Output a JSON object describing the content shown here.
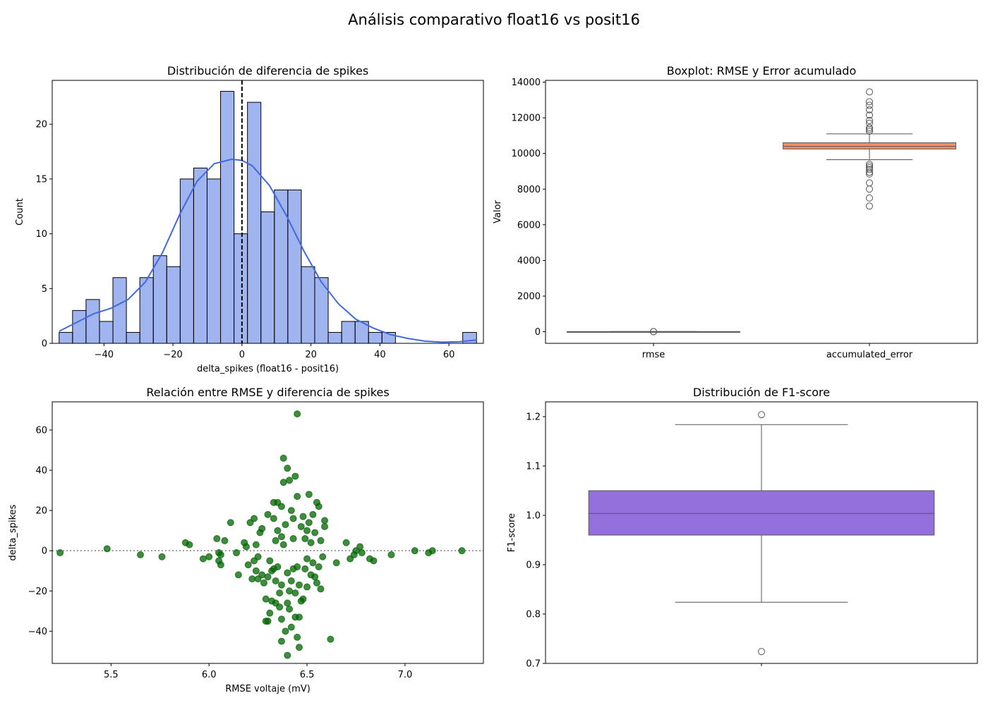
{
  "figure": {
    "title": "Análisis comparativo float16 vs posit16"
  },
  "chart_data": [
    {
      "type": "histogram",
      "title": "Distribución de diferencia de spikes",
      "xlabel": "delta_spikes (float16 - posit16)",
      "ylabel": "Count",
      "xlim": [
        -55,
        70
      ],
      "ylim": [
        0,
        24
      ],
      "xticks": [
        -40,
        -20,
        0,
        20,
        40,
        60
      ],
      "yticks": [
        0,
        5,
        10,
        15,
        20
      ],
      "grid": false,
      "color": "#4169e1",
      "bins": [
        {
          "x0": -53,
          "x1": -49.1,
          "count": 1
        },
        {
          "x0": -49.1,
          "x1": -45.2,
          "count": 3
        },
        {
          "x0": -45.2,
          "x1": -41.3,
          "count": 4
        },
        {
          "x0": -41.3,
          "x1": -37.4,
          "count": 2
        },
        {
          "x0": -37.4,
          "x1": -33.5,
          "count": 6
        },
        {
          "x0": -33.5,
          "x1": -29.6,
          "count": 1
        },
        {
          "x0": -29.6,
          "x1": -25.7,
          "count": 6
        },
        {
          "x0": -25.7,
          "x1": -21.8,
          "count": 8
        },
        {
          "x0": -21.8,
          "x1": -17.9,
          "count": 7
        },
        {
          "x0": -17.9,
          "x1": -14.0,
          "count": 15
        },
        {
          "x0": -14.0,
          "x1": -10.1,
          "count": 16
        },
        {
          "x0": -10.1,
          "x1": -6.2,
          "count": 15
        },
        {
          "x0": -6.2,
          "x1": -2.3,
          "count": 23
        },
        {
          "x0": -2.3,
          "x1": 1.6,
          "count": 10
        },
        {
          "x0": 1.6,
          "x1": 5.5,
          "count": 22
        },
        {
          "x0": 5.5,
          "x1": 9.4,
          "count": 12
        },
        {
          "x0": 9.4,
          "x1": 13.3,
          "count": 14
        },
        {
          "x0": 13.3,
          "x1": 17.2,
          "count": 14
        },
        {
          "x0": 17.2,
          "x1": 21.1,
          "count": 7
        },
        {
          "x0": 21.1,
          "x1": 25.0,
          "count": 6
        },
        {
          "x0": 25.0,
          "x1": 28.9,
          "count": 1
        },
        {
          "x0": 28.9,
          "x1": 32.8,
          "count": 2
        },
        {
          "x0": 32.8,
          "x1": 36.7,
          "count": 2
        },
        {
          "x0": 36.7,
          "x1": 40.6,
          "count": 1
        },
        {
          "x0": 40.6,
          "x1": 44.5,
          "count": 1
        },
        {
          "x0": 64.0,
          "x1": 68.0,
          "count": 1
        }
      ],
      "kde": {
        "x": [
          -53,
          -48,
          -43,
          -38,
          -33,
          -28,
          -23,
          -18,
          -13,
          -8,
          -3,
          0,
          3,
          8,
          13,
          18,
          23,
          28,
          33,
          38,
          43,
          48,
          53,
          58,
          63,
          68
        ],
        "y": [
          1.1,
          1.9,
          2.7,
          3.2,
          4.0,
          5.6,
          8.3,
          11.8,
          14.8,
          16.4,
          16.8,
          16.7,
          16.2,
          14.4,
          11.6,
          8.4,
          5.6,
          3.6,
          2.2,
          1.4,
          0.8,
          0.45,
          0.2,
          0.1,
          0.15,
          0.3
        ]
      },
      "vline": 0
    },
    {
      "type": "boxplot",
      "title": "Boxplot: RMSE y Error acumulado",
      "xlabel": "",
      "ylabel": "Valor",
      "ylim": [
        -650,
        14100
      ],
      "yticks": [
        0,
        2000,
        4000,
        6000,
        8000,
        10000,
        12000,
        14000
      ],
      "categories": [
        "rmse",
        "accumulated_error"
      ],
      "boxes": [
        {
          "name": "rmse",
          "color": "#66c2a5",
          "q1": 6.2,
          "median": 6.4,
          "q3": 6.6,
          "whisker_low": 5.2,
          "whisker_high": 7.3,
          "outliers": [
            5.22,
            7.29
          ]
        },
        {
          "name": "accumulated_error",
          "color": "#fc8d62",
          "q1": 10250,
          "median": 10400,
          "q3": 10600,
          "whisker_low": 9650,
          "whisker_high": 11100,
          "outliers": [
            13450,
            12900,
            12700,
            12450,
            12150,
            11850,
            11700,
            11450,
            11350,
            11250,
            9400,
            9300,
            9200,
            9100,
            8950,
            8850,
            8350,
            8000,
            7500,
            7050
          ]
        }
      ]
    },
    {
      "type": "scatter",
      "title": "Relación entre RMSE y diferencia de spikes",
      "xlabel": "RMSE voltaje (mV)",
      "ylabel": "delta_spikes",
      "xlim": [
        5.2,
        7.4
      ],
      "ylim": [
        -56,
        74
      ],
      "xticks": [
        5.5,
        6.0,
        6.5,
        7.0
      ],
      "yticks": [
        -40,
        -20,
        0,
        20,
        40,
        60
      ],
      "color": "#006400",
      "hline": 0,
      "points": [
        [
          5.24,
          -1
        ],
        [
          5.48,
          1
        ],
        [
          5.65,
          -2
        ],
        [
          5.76,
          -3
        ],
        [
          5.88,
          4
        ],
        [
          5.9,
          3
        ],
        [
          5.97,
          -4
        ],
        [
          6.0,
          -3
        ],
        [
          6.04,
          6
        ],
        [
          6.05,
          -1
        ],
        [
          6.05,
          -5
        ],
        [
          6.06,
          -7
        ],
        [
          6.06,
          -2
        ],
        [
          6.08,
          5
        ],
        [
          6.11,
          14
        ],
        [
          6.14,
          -1
        ],
        [
          6.15,
          -12
        ],
        [
          6.18,
          4
        ],
        [
          6.19,
          2
        ],
        [
          6.2,
          -7
        ],
        [
          6.21,
          14
        ],
        [
          6.23,
          -5
        ],
        [
          6.22,
          -14
        ],
        [
          6.23,
          16
        ],
        [
          6.24,
          -10
        ],
        [
          6.24,
          3
        ],
        [
          6.25,
          -14
        ],
        [
          6.25,
          -3
        ],
        [
          6.26,
          9
        ],
        [
          6.27,
          -12
        ],
        [
          6.27,
          11
        ],
        [
          6.28,
          -16
        ],
        [
          6.29,
          -24
        ],
        [
          6.29,
          -35
        ],
        [
          6.3,
          -35
        ],
        [
          6.3,
          18
        ],
        [
          6.3,
          -13
        ],
        [
          6.31,
          -5
        ],
        [
          6.31,
          -31
        ],
        [
          6.32,
          -25
        ],
        [
          6.32,
          -10
        ],
        [
          6.33,
          24
        ],
        [
          6.33,
          16
        ],
        [
          6.33,
          -9
        ],
        [
          6.34,
          -26
        ],
        [
          6.34,
          -15
        ],
        [
          6.34,
          5
        ],
        [
          6.35,
          24
        ],
        [
          6.35,
          -8
        ],
        [
          6.35,
          10
        ],
        [
          6.36,
          -21
        ],
        [
          6.36,
          -28
        ],
        [
          6.37,
          -34
        ],
        [
          6.37,
          -45
        ],
        [
          6.37,
          22
        ],
        [
          6.37,
          7
        ],
        [
          6.37,
          -17
        ],
        [
          6.38,
          34
        ],
        [
          6.38,
          46
        ],
        [
          6.38,
          3
        ],
        [
          6.39,
          -40
        ],
        [
          6.39,
          13
        ],
        [
          6.4,
          41
        ],
        [
          6.4,
          -11
        ],
        [
          6.4,
          -26
        ],
        [
          6.4,
          -52
        ],
        [
          6.41,
          35
        ],
        [
          6.41,
          -20
        ],
        [
          6.41,
          -29
        ],
        [
          6.42,
          20
        ],
        [
          6.42,
          -15
        ],
        [
          6.42,
          -38
        ],
        [
          6.43,
          16
        ],
        [
          6.43,
          -9
        ],
        [
          6.43,
          6
        ],
        [
          6.44,
          37
        ],
        [
          6.44,
          -33
        ],
        [
          6.44,
          -21
        ],
        [
          6.45,
          -43
        ],
        [
          6.45,
          68
        ],
        [
          6.45,
          27
        ],
        [
          6.45,
          -8
        ],
        [
          6.46,
          -33
        ],
        [
          6.46,
          -48
        ],
        [
          6.46,
          -17
        ],
        [
          6.47,
          12
        ],
        [
          6.47,
          -25
        ],
        [
          6.48,
          17
        ],
        [
          6.48,
          -24
        ],
        [
          6.49,
          -9
        ],
        [
          6.49,
          6
        ],
        [
          6.5,
          -18
        ],
        [
          6.5,
          10
        ],
        [
          6.5,
          -4
        ],
        [
          6.51,
          28
        ],
        [
          6.51,
          14
        ],
        [
          6.52,
          -12
        ],
        [
          6.52,
          4
        ],
        [
          6.53,
          -6
        ],
        [
          6.53,
          18
        ],
        [
          6.54,
          -13
        ],
        [
          6.54,
          9
        ],
        [
          6.55,
          -16
        ],
        [
          6.55,
          24
        ],
        [
          6.56,
          22
        ],
        [
          6.56,
          -8
        ],
        [
          6.57,
          -19
        ],
        [
          6.57,
          5
        ],
        [
          6.58,
          -3
        ],
        [
          6.59,
          15
        ],
        [
          6.59,
          12
        ],
        [
          6.62,
          -44
        ],
        [
          6.65,
          -6
        ],
        [
          6.7,
          4
        ],
        [
          6.72,
          -4
        ],
        [
          6.74,
          -2
        ],
        [
          6.75,
          0
        ],
        [
          6.77,
          2
        ],
        [
          6.78,
          -1
        ],
        [
          6.82,
          -4
        ],
        [
          6.84,
          -5
        ],
        [
          6.93,
          -2
        ],
        [
          7.05,
          0
        ],
        [
          7.12,
          -1
        ],
        [
          7.14,
          0
        ],
        [
          7.29,
          0
        ]
      ]
    },
    {
      "type": "boxplot",
      "title": "Distribución de F1-score",
      "xlabel": "",
      "ylabel": "F1-score",
      "ylim": [
        0.7,
        1.23
      ],
      "yticks": [
        0.7,
        0.8,
        0.9,
        1.0,
        1.1,
        1.2
      ],
      "color": "#9370db",
      "boxes": [
        {
          "q1": 0.96,
          "median": 1.004,
          "q3": 1.05,
          "whisker_low": 0.824,
          "whisker_high": 1.184,
          "outliers": [
            1.204,
            0.724
          ]
        }
      ]
    }
  ]
}
